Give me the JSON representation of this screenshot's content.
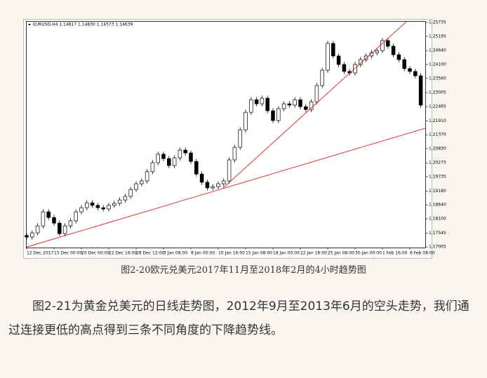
{
  "chart_data": {
    "type": "candlestick",
    "title": "EURUSD,H4 1.14817 1.14830 1.14573 1.14639",
    "categories": [
      "12 Dec 2017",
      null,
      null,
      null,
      null,
      "15 Dec 00:00",
      null,
      null,
      null,
      null,
      "20 Dec 00:00",
      null,
      null,
      null,
      null,
      "22 Dec 16:00",
      null,
      null,
      null,
      null,
      "28 Dec 12:00",
      null,
      null,
      null,
      null,
      "3 Jan 08:00",
      null,
      null,
      null,
      null,
      "8 Jan 00:00",
      null,
      null,
      null,
      null,
      "10 Jan 16:00",
      null,
      null,
      null,
      null,
      "15 Jan 08:00",
      null,
      null,
      null,
      null,
      "18 Jan 00:00",
      null,
      null,
      null,
      null,
      "22 Jan 16:00",
      null,
      null,
      null,
      null,
      "25 Jan 08:00",
      null,
      null,
      null,
      null,
      "30 Jan 00:00",
      null,
      null,
      null,
      null,
      "1 Feb 16:00",
      null,
      null,
      null,
      null,
      "6 Feb 08:00",
      null,
      null
    ],
    "candles": [
      [
        1.1745,
        1.1755,
        1.1729,
        1.1739
      ],
      [
        1.1739,
        1.1765,
        1.1729,
        1.1755
      ],
      [
        1.1755,
        1.1792,
        1.1745,
        1.1782
      ],
      [
        1.1782,
        1.1847,
        1.1772,
        1.1837
      ],
      [
        1.1837,
        1.1847,
        1.1805,
        1.1815
      ],
      [
        1.1815,
        1.1825,
        1.1783,
        1.1793
      ],
      [
        1.1793,
        1.1803,
        1.1742,
        1.1752
      ],
      [
        1.1752,
        1.1792,
        1.1742,
        1.1782
      ],
      [
        1.1782,
        1.1812,
        1.1772,
        1.1802
      ],
      [
        1.1802,
        1.1847,
        1.1792,
        1.1837
      ],
      [
        1.1837,
        1.1863,
        1.1827,
        1.1853
      ],
      [
        1.1853,
        1.1882,
        1.1843,
        1.1872
      ],
      [
        1.1872,
        1.1882,
        1.1852,
        1.1862
      ],
      [
        1.1862,
        1.1872,
        1.1843,
        1.1853
      ],
      [
        1.1853,
        1.1863,
        1.1838,
        1.1848
      ],
      [
        1.1848,
        1.1872,
        1.1838,
        1.1862
      ],
      [
        1.1862,
        1.188,
        1.1852,
        1.187
      ],
      [
        1.187,
        1.1893,
        1.186,
        1.1883
      ],
      [
        1.1883,
        1.1907,
        1.1873,
        1.1897
      ],
      [
        1.1897,
        1.1934,
        1.1887,
        1.1924
      ],
      [
        1.1924,
        1.1956,
        1.1914,
        1.1946
      ],
      [
        1.1946,
        1.1967,
        1.1936,
        1.1957
      ],
      [
        1.1957,
        1.2003,
        1.1947,
        1.1993
      ],
      [
        1.1993,
        1.2038,
        1.1983,
        1.2028
      ],
      [
        1.2028,
        1.2071,
        1.2018,
        1.2061
      ],
      [
        1.2061,
        1.2071,
        1.2034,
        1.2044
      ],
      [
        1.2044,
        1.2054,
        1.2007,
        1.2017
      ],
      [
        1.2017,
        1.2057,
        1.2007,
        1.2047
      ],
      [
        1.2047,
        1.2087,
        1.2037,
        1.2077
      ],
      [
        1.2077,
        1.2087,
        1.2056,
        1.2066
      ],
      [
        1.2066,
        1.2076,
        1.2023,
        1.2033
      ],
      [
        1.2033,
        1.2043,
        1.1974,
        1.1984
      ],
      [
        1.1984,
        1.1994,
        1.1942,
        1.1952
      ],
      [
        1.1952,
        1.1962,
        1.192,
        1.193
      ],
      [
        1.193,
        1.1945,
        1.192,
        1.1935
      ],
      [
        1.1935,
        1.1956,
        1.1925,
        1.1946
      ],
      [
        1.1946,
        1.1967,
        1.1936,
        1.1957
      ],
      [
        1.1957,
        1.2049,
        1.1947,
        1.2039
      ],
      [
        1.2039,
        1.2098,
        1.2029,
        1.2088
      ],
      [
        1.2088,
        1.2166,
        1.2078,
        1.2156
      ],
      [
        1.2156,
        1.2234,
        1.2146,
        1.2224
      ],
      [
        1.2224,
        1.2283,
        1.2214,
        1.2273
      ],
      [
        1.2273,
        1.2283,
        1.2247,
        1.2257
      ],
      [
        1.2257,
        1.2289,
        1.2247,
        1.2279
      ],
      [
        1.2279,
        1.2289,
        1.222,
        1.223
      ],
      [
        1.223,
        1.224,
        1.2182,
        1.2192
      ],
      [
        1.2192,
        1.2248,
        1.2182,
        1.2238
      ],
      [
        1.2238,
        1.2267,
        1.2228,
        1.2257
      ],
      [
        1.2257,
        1.2267,
        1.2242,
        1.2252
      ],
      [
        1.2252,
        1.2283,
        1.2242,
        1.2273
      ],
      [
        1.2273,
        1.2283,
        1.2236,
        1.2246
      ],
      [
        1.2246,
        1.2256,
        1.2225,
        1.2235
      ],
      [
        1.2235,
        1.2275,
        1.2225,
        1.2265
      ],
      [
        1.2265,
        1.2338,
        1.2255,
        1.2328
      ],
      [
        1.2328,
        1.2398,
        1.2318,
        1.2388
      ],
      [
        1.2388,
        1.2502,
        1.2378,
        1.2492
      ],
      [
        1.2492,
        1.2502,
        1.2433,
        1.2443
      ],
      [
        1.2443,
        1.2453,
        1.24,
        1.241
      ],
      [
        1.241,
        1.242,
        1.2373,
        1.2383
      ],
      [
        1.2383,
        1.2393,
        1.2367,
        1.2377
      ],
      [
        1.2377,
        1.242,
        1.2367,
        1.241
      ],
      [
        1.241,
        1.2439,
        1.24,
        1.2429
      ],
      [
        1.2429,
        1.2453,
        1.2419,
        1.2443
      ],
      [
        1.2443,
        1.2466,
        1.2433,
        1.2456
      ],
      [
        1.2456,
        1.2474,
        1.2446,
        1.2464
      ],
      [
        1.2464,
        1.2513,
        1.2454,
        1.2503
      ],
      [
        1.2503,
        1.2513,
        1.2471,
        1.2481
      ],
      [
        1.2481,
        1.2491,
        1.2438,
        1.2448
      ],
      [
        1.2448,
        1.2458,
        1.2419,
        1.2429
      ],
      [
        1.2429,
        1.2439,
        1.2384,
        1.2394
      ],
      [
        1.2394,
        1.2404,
        1.2373,
        1.2383
      ],
      [
        1.2383,
        1.2393,
        1.2356,
        1.2366
      ],
      [
        1.2366,
        1.2376,
        1.2242,
        1.2252
      ]
    ],
    "trendlines": [
      {
        "color": "#e02020",
        "x": [
          0,
          72.8
        ],
        "values": [
          1.17,
          1.2162
        ]
      },
      {
        "color": "#e02020",
        "x": [
          35.9,
          69.5
        ],
        "values": [
          1.193,
          1.2579
        ]
      }
    ],
    "ylim": [
      1.1698,
      1.2579
    ],
    "yticks": [
      1.25735,
      1.25195,
      {
        "value": 1.2464,
        "label": "1.24640"
      },
      {
        "value": 1.241,
        "label": "1.24100"
      },
      {
        "value": 1.2356,
        "label": "1.23560"
      },
      1.23005,
      1.22465,
      {
        "value": 1.2191,
        "label": "1.21910"
      },
      {
        "value": 1.2137,
        "label": "1.21370"
      },
      {
        "value": 1.2083,
        "label": "1.20830"
      },
      1.20275,
      1.19735,
      {
        "value": 1.1918,
        "label": "1.19180"
      },
      {
        "value": 1.1864,
        "label": "1.18640"
      },
      {
        "value": 1.181,
        "label": "1.18100"
      },
      1.17545,
      1.17005
    ]
  },
  "caption": "图2-20欧元兑美元2017年11月至2018年2月的4小时趋势图",
  "paragraph": "图2-21为黄金兑美元的日线走势图，2012年9月至2013年6月的空头走势，我们通过连接更低的高点得到三条不同角度的下降趋势线。"
}
